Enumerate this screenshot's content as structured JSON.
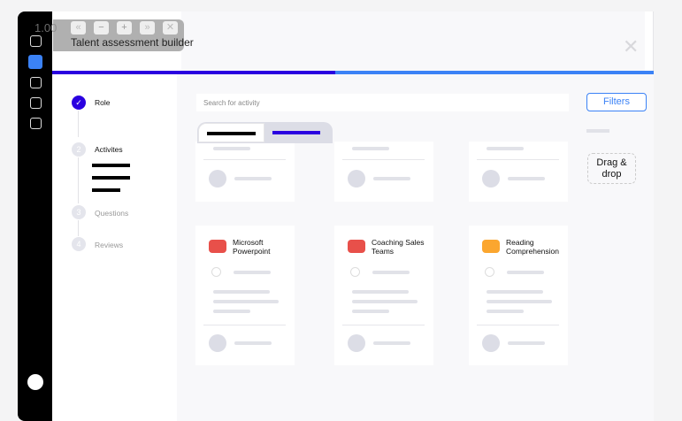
{
  "window": {
    "title": "Talent assessment builder",
    "zoom": "1.00"
  },
  "overlay_buttons": [
    {
      "icon": "double-left-icon",
      "glyph": "«"
    },
    {
      "icon": "minus-icon",
      "glyph": "−"
    },
    {
      "icon": "plus-icon",
      "glyph": "+"
    },
    {
      "icon": "double-right-icon",
      "glyph": "»"
    },
    {
      "icon": "close-icon",
      "glyph": "✕"
    }
  ],
  "close_glyph": "✕",
  "progress": {
    "fraction": 0.47,
    "colors": {
      "done": "#2a00e0",
      "remaining": "#3b82f6"
    }
  },
  "steps": [
    {
      "num": "✓",
      "label": "Role"
    },
    {
      "num": "2",
      "label": "Activites"
    },
    {
      "num": "3",
      "label": "Questions"
    },
    {
      "num": "4",
      "label": "Reviews"
    }
  ],
  "search": {
    "placeholder": "Search for activity"
  },
  "filters_label": "Filters",
  "drag_label": "Drag & drop",
  "cards": [
    {
      "title": "Microsoft Powerpoint",
      "color": "#e8504a"
    },
    {
      "title": "Coaching Sales Teams",
      "color": "#e8504a"
    },
    {
      "title": "Reading Comprehension",
      "color": "#fba62f"
    }
  ]
}
